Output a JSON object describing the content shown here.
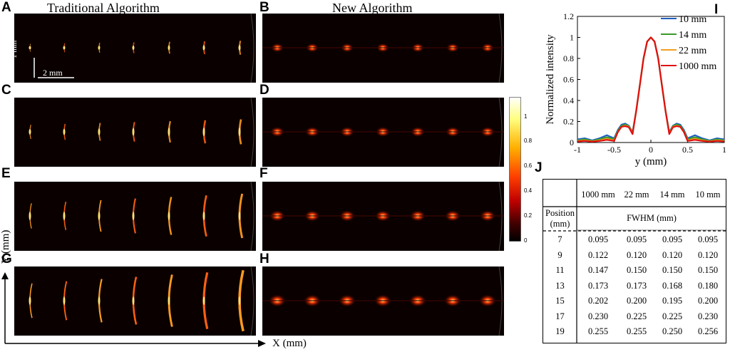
{
  "panels": {
    "letters": [
      "A",
      "B",
      "C",
      "D",
      "E",
      "F",
      "G",
      "H",
      "I",
      "J"
    ],
    "col_titles": {
      "left": "Traditional Algorithm",
      "right": "New Algorithm"
    }
  },
  "scale_bars": {
    "vertical": "1 mm",
    "horizontal": "2 mm"
  },
  "axes_overall": {
    "x": "X (mm)",
    "y": "Y (mm)"
  },
  "colorbar": {
    "ticks": [
      "1",
      "0.8",
      "0.6",
      "0.4",
      "0.2",
      "0"
    ],
    "colors": [
      "#ffffff",
      "#ffff80",
      "#ffb000",
      "#ff4000",
      "#c00000",
      "#400000",
      "#000000"
    ]
  },
  "chart_data": [
    {
      "type": "line",
      "panel": "I",
      "xlabel": "y (mm)",
      "ylabel": "Normalized intensity",
      "xlim": [
        -1,
        1
      ],
      "ylim": [
        0,
        1.2
      ],
      "xticks": [
        "-1",
        "-0.5",
        "0",
        "0.5",
        "1"
      ],
      "yticks": [
        "0",
        "0.2",
        "0.4",
        "0.6",
        "0.8",
        "1",
        "1.2"
      ],
      "legend_position": "top-right",
      "x": [
        -1,
        -0.9,
        -0.8,
        -0.7,
        -0.6,
        -0.5,
        -0.45,
        -0.4,
        -0.35,
        -0.3,
        -0.25,
        -0.2,
        -0.15,
        -0.1,
        -0.05,
        0,
        0.05,
        0.1,
        0.15,
        0.2,
        0.25,
        0.3,
        0.35,
        0.4,
        0.45,
        0.5,
        0.6,
        0.7,
        0.8,
        0.9,
        1
      ],
      "series": [
        {
          "name": "10 mm",
          "color": "#1f5fbf",
          "values": [
            0.03,
            0.04,
            0.02,
            0.04,
            0.07,
            0.04,
            0.12,
            0.17,
            0.18,
            0.16,
            0.1,
            0.3,
            0.55,
            0.8,
            0.96,
            1,
            0.96,
            0.8,
            0.55,
            0.3,
            0.1,
            0.16,
            0.18,
            0.17,
            0.12,
            0.04,
            0.07,
            0.04,
            0.02,
            0.04,
            0.03
          ]
        },
        {
          "name": "14 mm",
          "color": "#3a9a2a",
          "values": [
            0.02,
            0.03,
            0.015,
            0.03,
            0.05,
            0.03,
            0.11,
            0.16,
            0.17,
            0.155,
            0.09,
            0.3,
            0.55,
            0.8,
            0.96,
            1,
            0.96,
            0.8,
            0.55,
            0.3,
            0.09,
            0.155,
            0.17,
            0.16,
            0.11,
            0.03,
            0.05,
            0.03,
            0.015,
            0.03,
            0.02
          ]
        },
        {
          "name": "22 mm",
          "color": "#f0a020",
          "values": [
            0.015,
            0.02,
            0.01,
            0.02,
            0.035,
            0.02,
            0.1,
            0.15,
            0.16,
            0.15,
            0.085,
            0.3,
            0.55,
            0.8,
            0.96,
            1,
            0.96,
            0.8,
            0.55,
            0.3,
            0.085,
            0.15,
            0.16,
            0.15,
            0.1,
            0.02,
            0.035,
            0.02,
            0.01,
            0.02,
            0.015
          ]
        },
        {
          "name": "1000 mm",
          "color": "#e01010",
          "values": [
            0.01,
            0.015,
            0.008,
            0.015,
            0.025,
            0.015,
            0.1,
            0.15,
            0.155,
            0.145,
            0.08,
            0.3,
            0.55,
            0.8,
            0.96,
            1,
            0.96,
            0.8,
            0.55,
            0.3,
            0.08,
            0.145,
            0.155,
            0.15,
            0.1,
            0.015,
            0.025,
            0.015,
            0.008,
            0.015,
            0.01
          ]
        }
      ]
    },
    {
      "type": "table",
      "panel": "J",
      "row_header_label": "Position (mm)",
      "group_header": "FWHM (mm)",
      "columns": [
        "1000 mm",
        "22 mm",
        "14 mm",
        "10 mm"
      ],
      "rows": [
        {
          "position": "7",
          "values": [
            "0.095",
            "0.095",
            "0.095",
            "0.095"
          ]
        },
        {
          "position": "9",
          "values": [
            "0.122",
            "0.120",
            "0.120",
            "0.120"
          ]
        },
        {
          "position": "11",
          "values": [
            "0.147",
            "0.150",
            "0.150",
            "0.150"
          ]
        },
        {
          "position": "13",
          "values": [
            "0.173",
            "0.173",
            "0.168",
            "0.180"
          ]
        },
        {
          "position": "15",
          "values": [
            "0.202",
            "0.200",
            "0.195",
            "0.200"
          ]
        },
        {
          "position": "17",
          "values": [
            "0.230",
            "0.225",
            "0.225",
            "0.230"
          ]
        },
        {
          "position": "19",
          "values": [
            "0.255",
            "0.255",
            "0.250",
            "0.256"
          ]
        }
      ]
    }
  ]
}
